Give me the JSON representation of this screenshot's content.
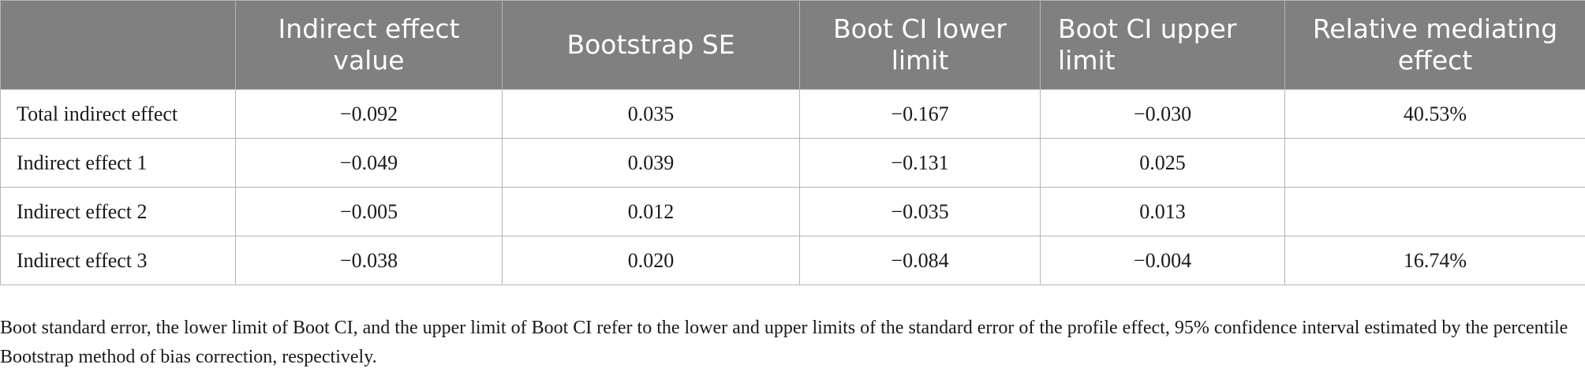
{
  "table": {
    "columns": [
      "",
      "Indirect effect value",
      "Bootstrap SE",
      "Boot CI lower limit",
      "Boot CI upper limit",
      "Relative mediating effect"
    ],
    "rows": [
      {
        "label": "Total indirect effect",
        "cells": [
          "−0.092",
          "0.035",
          "−0.167",
          "−0.030",
          "40.53%"
        ]
      },
      {
        "label": "Indirect effect 1",
        "cells": [
          "−0.049",
          "0.039",
          "−0.131",
          "0.025",
          ""
        ]
      },
      {
        "label": "Indirect effect 2",
        "cells": [
          "−0.005",
          "0.012",
          "−0.035",
          "0.013",
          ""
        ]
      },
      {
        "label": "Indirect effect 3",
        "cells": [
          "−0.038",
          "0.020",
          "−0.084",
          "−0.004",
          "16.74%"
        ]
      }
    ]
  },
  "footnote": "Boot standard error, the lower limit of Boot CI, and the upper limit of Boot CI refer to the lower and upper limits of the standard error of the profile effect, 95% confidence interval estimated by the percentile Bootstrap method of bias correction, respectively.",
  "colors": {
    "header_background": "#808080",
    "header_text": "#ffffff",
    "grid": "#b5b5b5",
    "body_text": "#1a1a1a"
  }
}
